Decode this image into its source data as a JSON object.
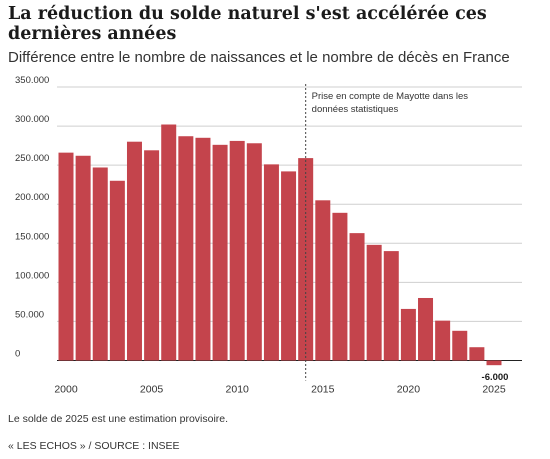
{
  "header": {
    "title": "La réduction du solde naturel s'est accélérée ces dernières années",
    "subtitle": "Différence entre le nombre de naissances et le nombre de décès en France"
  },
  "footer": {
    "note": "Le solde de 2025 est une estimation provisoire.",
    "source": "« LES ECHOS » / SOURCE : INSEE"
  },
  "colors": {
    "bar": "#c4444c",
    "grid": "#cfcfcf",
    "text": "#333333"
  },
  "chart_data": {
    "type": "bar",
    "title": "La réduction du solde naturel s'est accélérée ces dernières années",
    "subtitle": "Différence entre le nombre de naissances et le nombre de décès en France",
    "categories": [
      2000,
      2001,
      2002,
      2003,
      2004,
      2005,
      2006,
      2007,
      2008,
      2009,
      2010,
      2011,
      2012,
      2013,
      2014,
      2015,
      2016,
      2017,
      2018,
      2019,
      2020,
      2021,
      2022,
      2023,
      2024,
      2025
    ],
    "values": [
      266000,
      262000,
      247000,
      230000,
      280000,
      269000,
      302000,
      287000,
      285000,
      276000,
      281000,
      278000,
      251000,
      242000,
      259000,
      205000,
      189000,
      163000,
      148000,
      140000,
      66000,
      80000,
      51000,
      38000,
      17000,
      -6000
    ],
    "ylim": [
      0,
      350000
    ],
    "yticks": [
      0,
      50000,
      100000,
      150000,
      200000,
      250000,
      300000,
      350000
    ],
    "ytick_labels": [
      "0",
      "50.000",
      "100.000",
      "150.000",
      "200.000",
      "250.000",
      "300.000",
      "350.000"
    ],
    "xticks": [
      2000,
      2005,
      2010,
      2015,
      2020,
      2025
    ],
    "data_labels": [
      {
        "x": 2025,
        "text": "-6.000"
      }
    ],
    "annotation": {
      "x": 2014,
      "text_lines": [
        "Prise en compte de Mayotte dans les",
        "données statistiques"
      ]
    },
    "grid": true,
    "legend": "none"
  }
}
